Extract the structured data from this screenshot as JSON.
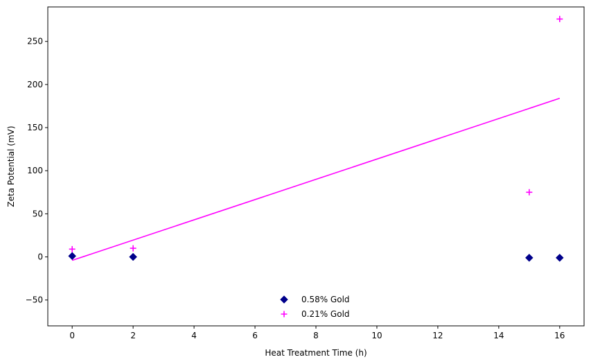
{
  "chart_data": {
    "type": "scatter",
    "title": "",
    "xlabel": "Heat Treatment Time (h)",
    "ylabel": "Zeta Potential (mV)",
    "xlim": [
      -0.8,
      16.8
    ],
    "ylim": [
      -80,
      290
    ],
    "xticks": [
      0,
      2,
      4,
      6,
      8,
      10,
      12,
      14,
      16
    ],
    "yticks": [
      -50,
      0,
      50,
      100,
      150,
      200,
      250
    ],
    "grid": false,
    "legend_position": "lower-center",
    "series": [
      {
        "name": "0.58% Gold",
        "marker": "diamond",
        "color": "#00008b",
        "x": [
          0,
          2,
          15,
          16
        ],
        "y": [
          1,
          0,
          -1,
          -1
        ]
      },
      {
        "name": "0.21% Gold",
        "marker": "plus",
        "color": "#ff00ff",
        "x": [
          0,
          2,
          15,
          16
        ],
        "y": [
          9,
          10,
          75,
          276
        ]
      }
    ],
    "fit_line": {
      "color": "#ff00ff",
      "x": [
        0,
        16
      ],
      "y": [
        -4,
        184
      ]
    }
  }
}
